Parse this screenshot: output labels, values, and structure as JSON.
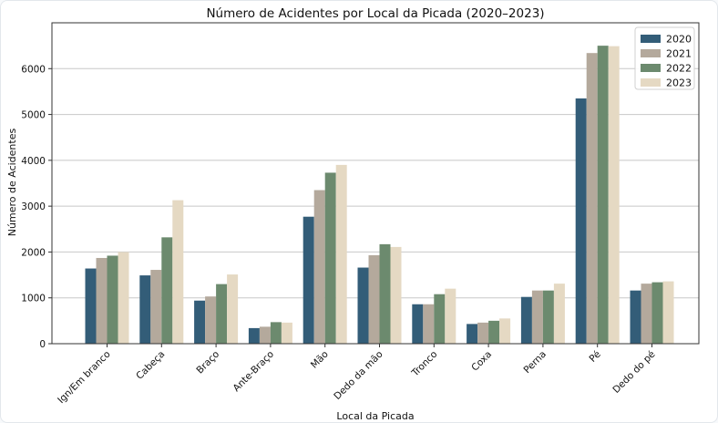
{
  "chart_data": {
    "type": "bar",
    "title": "Número de Acidentes por Local da Picada (2020–2023)",
    "xlabel": "Local da Picada",
    "ylabel": "Número de Acidentes",
    "ylim": [
      0,
      7000
    ],
    "yticks": [
      0,
      1000,
      2000,
      3000,
      4000,
      5000,
      6000
    ],
    "grid": "horizontal",
    "legend_position": "top-right",
    "categories": [
      "Ign/Em branco",
      "Cabeça",
      "Braço",
      "Ante-Braço",
      "Mão",
      "Dedo da mão",
      "Tronco",
      "Coxa",
      "Perna",
      "Pé",
      "Dedo do pé"
    ],
    "series": [
      {
        "name": "2020",
        "color": "#335d78",
        "values": [
          1640,
          1490,
          940,
          340,
          2770,
          1660,
          860,
          430,
          1020,
          5350,
          1160
        ]
      },
      {
        "name": "2021",
        "color": "#b4a99c",
        "values": [
          1870,
          1610,
          1030,
          370,
          3350,
          1930,
          860,
          460,
          1160,
          6340,
          1310
        ]
      },
      {
        "name": "2022",
        "color": "#6c8a6e",
        "values": [
          1920,
          2320,
          1300,
          470,
          3730,
          2170,
          1080,
          500,
          1160,
          6500,
          1340
        ]
      },
      {
        "name": "2023",
        "color": "#e5d9c3",
        "values": [
          2000,
          3130,
          1510,
          460,
          3900,
          2110,
          1200,
          550,
          1310,
          6490,
          1360
        ]
      }
    ]
  }
}
